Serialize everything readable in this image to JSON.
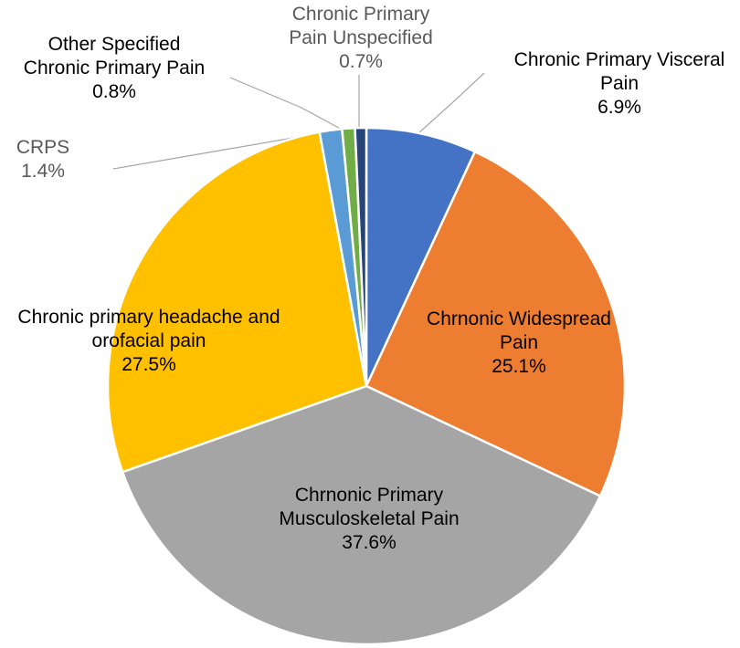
{
  "chart_data": {
    "type": "pie",
    "start": "top",
    "direction": "clockwise",
    "slices": [
      {
        "name": "Chronic Primary Visceral Pain",
        "label_lines": [
          "Chronic Primary Visceral",
          "Pain"
        ],
        "value": 6.9,
        "value_label": "6.9%",
        "color": "#4472c4"
      },
      {
        "name": "Chrnonic Widespread Pain",
        "label_lines": [
          "Chrnonic Widespread",
          "Pain"
        ],
        "value": 25.1,
        "value_label": "25.1%",
        "color": "#ed7d31"
      },
      {
        "name": "Chrnonic Primary Musculoskeletal Pain",
        "label_lines": [
          "Chrnonic Primary",
          "Musculoskeletal Pain"
        ],
        "value": 37.6,
        "value_label": "37.6%",
        "color": "#a5a5a5"
      },
      {
        "name": "Chronic primary headache and orofacial pain",
        "label_lines": [
          "Chronic primary headache and",
          "orofacial pain"
        ],
        "value": 27.5,
        "value_label": "27.5%",
        "color": "#ffc000"
      },
      {
        "name": "CRPS",
        "label_lines": [
          "CRPS"
        ],
        "value": 1.4,
        "value_label": "1.4%",
        "color": "#5b9bd5"
      },
      {
        "name": "Other Specified Chronic Primary Pain",
        "label_lines": [
          "Other Specified",
          "Chronic Primary Pain"
        ],
        "value": 0.8,
        "value_label": "0.8%",
        "color": "#70ad47"
      },
      {
        "name": "Chronic Primary Pain Unspecified",
        "label_lines": [
          "Chronic Primary",
          "Pain Unspecified"
        ],
        "value": 0.7,
        "value_label": "0.7%",
        "color": "#264478"
      }
    ]
  }
}
